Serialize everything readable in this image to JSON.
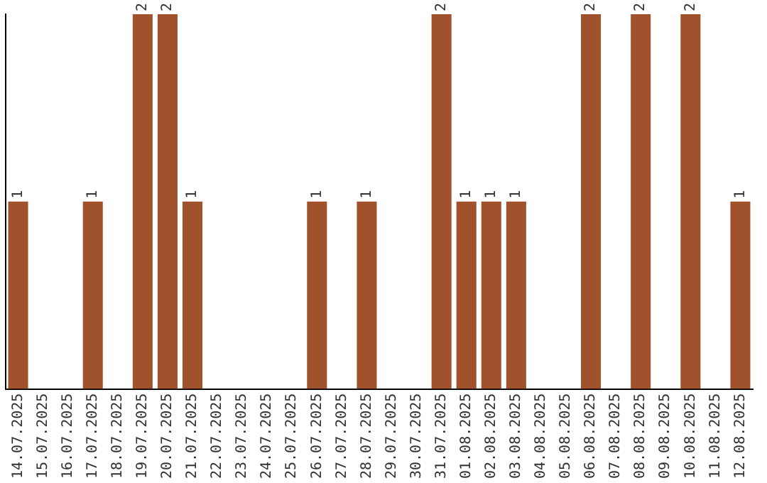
{
  "chart_data": {
    "type": "bar",
    "categories": [
      "14.07.2025",
      "15.07.2025",
      "16.07.2025",
      "17.07.2025",
      "18.07.2025",
      "19.07.2025",
      "20.07.2025",
      "21.07.2025",
      "22.07.2025",
      "23.07.2025",
      "24.07.2025",
      "25.07.2025",
      "26.07.2025",
      "27.07.2025",
      "28.07.2025",
      "29.07.2025",
      "30.07.2025",
      "31.07.2025",
      "01.08.2025",
      "02.08.2025",
      "03.08.2025",
      "04.08.2025",
      "05.08.2025",
      "06.08.2025",
      "07.08.2025",
      "08.08.2025",
      "09.08.2025",
      "10.08.2025",
      "11.08.2025",
      "12.08.2025"
    ],
    "values": [
      1,
      0,
      0,
      1,
      0,
      2,
      2,
      1,
      0,
      0,
      0,
      0,
      1,
      0,
      1,
      0,
      0,
      2,
      1,
      1,
      1,
      0,
      0,
      2,
      0,
      2,
      0,
      2,
      0,
      1
    ],
    "value_labels": [
      "1",
      null,
      null,
      "1",
      null,
      "2",
      "2",
      "1",
      null,
      null,
      null,
      null,
      "1",
      null,
      "1",
      null,
      null,
      "2",
      "1",
      "1",
      "1",
      null,
      null,
      "2",
      null,
      "2",
      null,
      "2",
      null,
      "1"
    ],
    "color": "#a0522d",
    "grid": false,
    "legend": false
  }
}
